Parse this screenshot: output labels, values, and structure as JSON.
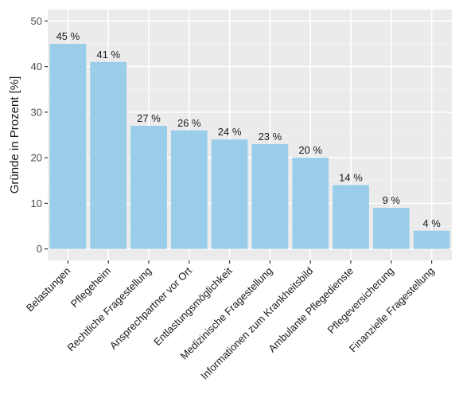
{
  "chart_data": {
    "type": "bar",
    "categories": [
      "Belastungen",
      "Pflegeheim",
      "Rechtliche Fragestellung",
      "Ansprechpartner vor Ort",
      "Entlastungsmöglichkeit",
      "Medizinische Fragestellung",
      "Informationen zum Krankheitsbild",
      "Ambulante Pflegedienste",
      "Pflegeversicherung",
      "Finanzielle Fragestellung"
    ],
    "values": [
      45,
      41,
      27,
      26,
      24,
      23,
      20,
      14,
      9,
      4
    ],
    "data_labels": [
      "45 %",
      "41 %",
      "27 %",
      "26 %",
      "24 %",
      "23 %",
      "20 %",
      "14 %",
      "9 %",
      "4 %"
    ],
    "title": "",
    "xlabel": "",
    "ylabel": "Gründe in Prozent [%]",
    "ylim": [
      -2.5,
      52.5
    ],
    "yticks": [
      0,
      10,
      20,
      30,
      40,
      50
    ],
    "grid": true,
    "legend": "none",
    "colors": {
      "bar": "#99cdea",
      "panel_background": "#ebebeb",
      "grid_major": "#ffffff",
      "grid_minor": "#f5f5f5"
    }
  }
}
